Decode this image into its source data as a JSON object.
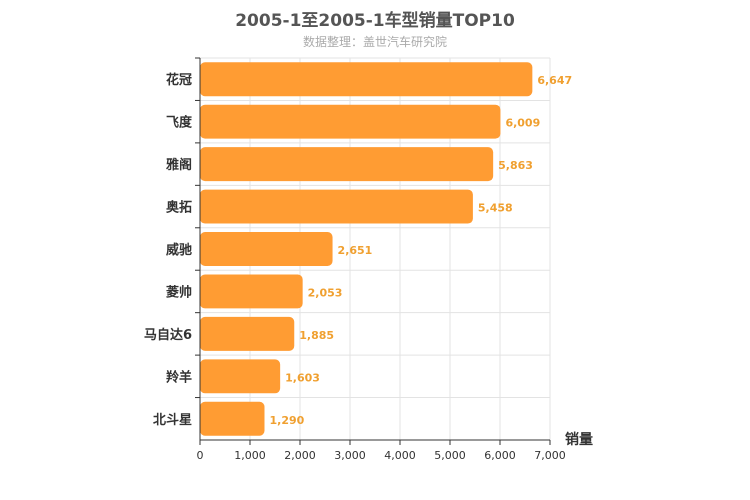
{
  "chart_data": {
    "type": "bar",
    "orientation": "horizontal",
    "title": "2005-1至2005-1车型销量TOP10",
    "subtitle": "数据整理：盖世汽车研究院",
    "categories": [
      "花冠",
      "飞度",
      "雅阁",
      "奥拓",
      "威驰",
      "菱帅",
      "马自达6",
      "羚羊",
      "北斗星"
    ],
    "values": [
      6647,
      6009,
      5863,
      5458,
      2651,
      2053,
      1885,
      1603,
      1290
    ],
    "value_labels": [
      "6,647",
      "6,009",
      "5,863",
      "5,458",
      "2,651",
      "2,053",
      "1,885",
      "1,603",
      "1,290"
    ],
    "xlabel": "销量",
    "ylabel": "",
    "xlim": [
      0,
      7000
    ],
    "xticks": [
      0,
      1000,
      2000,
      3000,
      4000,
      5000,
      6000,
      7000
    ],
    "xtick_labels": [
      "0",
      "1,000",
      "2,000",
      "3,000",
      "4,000",
      "5,000",
      "6,000",
      "7,000"
    ],
    "grid": true,
    "bar_color": "#ff9c33",
    "label_color": "#f0a030"
  }
}
